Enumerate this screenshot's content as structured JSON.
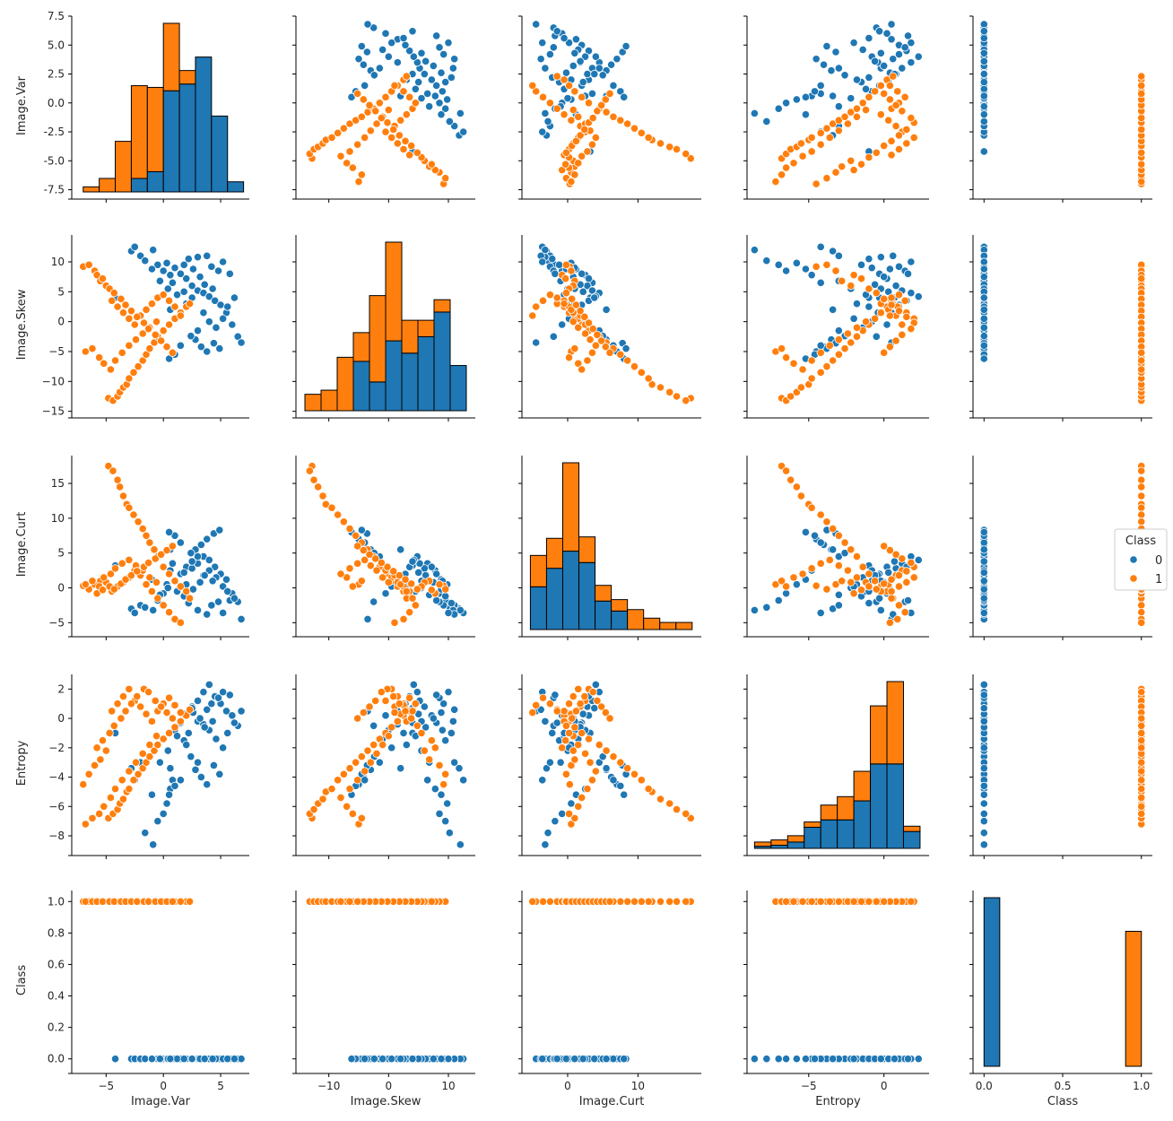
{
  "chart_data": {
    "type": "scatter",
    "kind": "pairplot",
    "variables": [
      "Image.Var",
      "Image.Skew",
      "Image.Curt",
      "Entropy",
      "Class"
    ],
    "hue": "Class",
    "legend": {
      "title": "Class",
      "placement": "right",
      "entries": [
        {
          "label": "0",
          "color": "#1f77b4"
        },
        {
          "label": "1",
          "color": "#ff7f0e"
        }
      ]
    },
    "colors": {
      "0": "#1f77b4",
      "1": "#ff7f0e"
    },
    "axes": {
      "Image.Var": {
        "lim": [
          -8,
          7.5
        ],
        "ticks": [
          -7.5,
          -5.0,
          -2.5,
          0.0,
          2.5,
          5.0,
          7.5
        ],
        "tick_labels": [
          "-7.5",
          "-5.0",
          "-2.5",
          "0.0",
          "2.5",
          "5.0",
          "7.5"
        ],
        "xticks": [
          -5,
          0,
          5
        ],
        "xtick_labels": [
          "−5",
          "0",
          "5"
        ]
      },
      "Image.Skew": {
        "lim": [
          -15.5,
          14.5
        ],
        "ticks": [
          -15,
          -10,
          -5,
          0,
          5,
          10
        ],
        "tick_labels": [
          "−15",
          "−10",
          "−5",
          "0",
          "5",
          "10"
        ],
        "xticks": [
          -10,
          0,
          10
        ],
        "xtick_labels": [
          "−10",
          "0",
          "10"
        ]
      },
      "Image.Curt": {
        "lim": [
          -6.5,
          19
        ],
        "ticks": [
          -5,
          0,
          5,
          10,
          15
        ],
        "tick_labels": [
          "−5",
          "0",
          "5",
          "10",
          "15"
        ],
        "xticks": [
          0,
          10
        ],
        "xtick_labels": [
          "0",
          "10"
        ]
      },
      "Entropy": {
        "lim": [
          -9.1,
          3.0
        ],
        "ticks": [
          -8,
          -6,
          -4,
          -2,
          0,
          2
        ],
        "tick_labels": [
          "−8",
          "−6",
          "−4",
          "−2",
          "0",
          "2"
        ],
        "xticks": [
          -5,
          0
        ],
        "xtick_labels": [
          "−5",
          "0"
        ]
      },
      "Class": {
        "lim": [
          -0.07,
          1.07
        ],
        "ticks": [
          0.0,
          0.2,
          0.4,
          0.6,
          0.8,
          1.0
        ],
        "tick_labels": [
          "0.0",
          "0.2",
          "0.4",
          "0.6",
          "0.8",
          "1.0"
        ],
        "xticks": [
          0.0,
          0.5,
          1.0
        ],
        "xtick_labels": [
          "0.0",
          "0.5",
          "1.0"
        ]
      }
    },
    "histograms": {
      "Image.Var": {
        "edges": [
          -7.0,
          -5.6,
          -4.2,
          -2.8,
          -1.4,
          0.0,
          1.4,
          2.8,
          4.2,
          5.6,
          7.0
        ],
        "counts_0": [
          0,
          0,
          0,
          8,
          12,
          60,
          64,
          80,
          45,
          6
        ],
        "counts_1": [
          3,
          8,
          30,
          55,
          50,
          40,
          8,
          0,
          0,
          0
        ]
      },
      "Image.Skew": {
        "edges": [
          -14,
          -11.3,
          -8.6,
          -5.9,
          -3.2,
          -0.5,
          2.2,
          4.9,
          7.6,
          10.3,
          13
        ],
        "counts_0": [
          0,
          0,
          0,
          12,
          7,
          17,
          14,
          18,
          24,
          11
        ],
        "counts_1": [
          4,
          5,
          13,
          7,
          21,
          24,
          8,
          4,
          3,
          0
        ]
      },
      "Image.Curt": {
        "edges": [
          -5.3,
          -3.0,
          -0.7,
          1.6,
          3.9,
          6.2,
          8.5,
          10.8,
          13.1,
          15.4,
          17.7
        ],
        "counts_0": [
          30,
          43,
          55,
          47,
          20,
          13,
          0,
          0,
          0,
          0
        ],
        "counts_1": [
          22,
          21,
          62,
          18,
          11,
          8,
          14,
          8,
          5,
          5
        ]
      },
      "Entropy": {
        "edges": [
          -8.6,
          -7.5,
          -6.4,
          -5.3,
          -4.2,
          -3.1,
          -2.0,
          -0.9,
          0.2,
          1.3,
          2.4
        ],
        "counts_0": [
          2,
          3,
          6,
          20,
          27,
          27,
          45,
          80,
          80,
          16
        ],
        "counts_1": [
          4,
          5,
          6,
          5,
          14,
          22,
          28,
          55,
          78,
          5
        ]
      },
      "Class": {
        "edges": [
          0.0,
          0.1,
          0.2,
          0.3,
          0.4,
          0.5,
          0.6,
          0.7,
          0.8,
          0.9,
          1.0
        ],
        "counts_0": [
          762,
          0,
          0,
          0,
          0,
          0,
          0,
          0,
          0,
          0
        ],
        "counts_1": [
          0,
          0,
          0,
          0,
          0,
          0,
          0,
          0,
          0,
          610
        ]
      }
    },
    "points_class_0": [
      [
        -4.2,
        4.0,
        3.2,
        -1.0
      ],
      [
        -2.8,
        11.8,
        -3.0,
        -3.4
      ],
      [
        -2.5,
        12.5,
        -3.6,
        -4.2
      ],
      [
        -2.0,
        11.0,
        -2.5,
        -3.0
      ],
      [
        -1.6,
        10.2,
        -2.8,
        -7.8
      ],
      [
        -0.9,
        12.0,
        -3.2,
        -8.6
      ],
      [
        -0.5,
        9.5,
        -1.8,
        -7.0
      ],
      [
        0.0,
        8.5,
        -0.8,
        -6.5
      ],
      [
        0.3,
        9.8,
        0.5,
        -5.8
      ],
      [
        0.6,
        7.8,
        2.5,
        -4.8
      ],
      [
        0.8,
        6.5,
        3.5,
        -4.2
      ],
      [
        -1.0,
        8.8,
        1.2,
        -5.2
      ],
      [
        1.0,
        9.0,
        1.0,
        -0.8
      ],
      [
        1.5,
        8.0,
        2.0,
        -0.3
      ],
      [
        2.0,
        7.2,
        3.0,
        0.2
      ],
      [
        2.5,
        6.0,
        2.8,
        0.8
      ],
      [
        3.0,
        5.2,
        3.5,
        1.2
      ],
      [
        3.5,
        4.8,
        4.5,
        1.8
      ],
      [
        4.0,
        4.2,
        4.0,
        2.3
      ],
      [
        4.5,
        3.5,
        3.0,
        1.5
      ],
      [
        5.0,
        2.8,
        2.0,
        1.0
      ],
      [
        5.5,
        1.5,
        1.2,
        0.5
      ],
      [
        6.0,
        -0.5,
        -0.8,
        0.2
      ],
      [
        6.5,
        -2.5,
        -2.0,
        -0.5
      ],
      [
        6.8,
        -3.5,
        -4.5,
        0.5
      ],
      [
        1.8,
        9.5,
        -1.2,
        -1.5
      ],
      [
        2.2,
        10.5,
        -2.2,
        -1.0
      ],
      [
        3.0,
        10.8,
        -3.2,
        -0.2
      ],
      [
        3.8,
        11.0,
        -3.8,
        0.6
      ],
      [
        4.2,
        9.2,
        -2.5,
        1.0
      ],
      [
        4.8,
        8.5,
        -2.0,
        1.4
      ],
      [
        5.2,
        10.0,
        -3.6,
        1.8
      ],
      [
        5.8,
        8.0,
        -1.8,
        1.6
      ],
      [
        2.8,
        -3.0,
        5.5,
        -3.5
      ],
      [
        3.3,
        -4.2,
        6.2,
        -4.0
      ],
      [
        3.8,
        -5.0,
        7.0,
        -4.5
      ],
      [
        4.4,
        -3.6,
        7.8,
        -3.2
      ],
      [
        4.9,
        -4.5,
        8.3,
        -3.8
      ],
      [
        3.0,
        -1.5,
        4.5,
        -3.0
      ],
      [
        2.4,
        -2.4,
        5.0,
        -2.6
      ],
      [
        1.5,
        -4.0,
        6.5,
        -4.2
      ],
      [
        1.0,
        -5.5,
        7.5,
        -4.6
      ],
      [
        0.5,
        -6.2,
        8.0,
        -5.2
      ],
      [
        2.0,
        3.0,
        0.5,
        -1.8
      ],
      [
        1.2,
        4.5,
        -0.5,
        -1.2
      ],
      [
        0.4,
        5.5,
        0.0,
        -2.2
      ],
      [
        -0.3,
        6.8,
        -1.0,
        -3.0
      ],
      [
        3.5,
        1.5,
        1.8,
        -0.4
      ],
      [
        4.0,
        0.0,
        2.5,
        -0.8
      ],
      [
        4.6,
        -1.0,
        1.5,
        -1.4
      ],
      [
        5.2,
        0.5,
        0.2,
        -2.0
      ],
      [
        5.6,
        2.5,
        -0.5,
        -1.0
      ],
      [
        6.2,
        4.0,
        -1.5,
        -0.3
      ],
      [
        2.6,
        8.8,
        -0.2,
        0.4
      ],
      [
        3.2,
        7.5,
        0.8,
        0.0
      ],
      [
        3.6,
        6.2,
        1.8,
        -0.6
      ],
      [
        4.3,
        5.5,
        1.0,
        -0.2
      ],
      [
        1.8,
        5.0,
        2.2,
        0.3
      ],
      [
        2.5,
        4.0,
        3.8,
        0.7
      ],
      [
        0.6,
        2.0,
        5.5,
        -3.4
      ]
    ],
    "points_class_1": [
      [
        -7.0,
        9.2,
        0.3,
        -4.5
      ],
      [
        -6.5,
        9.5,
        -0.2,
        -3.8
      ],
      [
        -6.0,
        8.5,
        0.5,
        -3.2
      ],
      [
        -5.5,
        6.8,
        1.0,
        -2.8
      ],
      [
        -5.0,
        6.0,
        0.8,
        -2.2
      ],
      [
        -4.8,
        -12.8,
        17.5,
        -6.8
      ],
      [
        -4.4,
        -13.2,
        16.8,
        -6.5
      ],
      [
        -4.0,
        -12.5,
        15.5,
        -6.2
      ],
      [
        -3.8,
        -11.8,
        14.5,
        -5.8
      ],
      [
        -3.5,
        -11.0,
        13.2,
        -5.5
      ],
      [
        -3.2,
        -10.5,
        12.0,
        -5.0
      ],
      [
        -3.0,
        -9.5,
        11.5,
        -4.8
      ],
      [
        -2.6,
        -8.5,
        10.5,
        -4.2
      ],
      [
        -2.2,
        -7.5,
        9.5,
        -3.8
      ],
      [
        -1.8,
        -6.5,
        8.5,
        -3.4
      ],
      [
        -1.5,
        -5.5,
        7.5,
        -3.0
      ],
      [
        -1.2,
        -4.5,
        6.5,
        -2.6
      ],
      [
        -0.8,
        -3.5,
        5.5,
        -2.2
      ],
      [
        -0.5,
        -2.5,
        4.5,
        -1.8
      ],
      [
        0.0,
        -1.5,
        3.0,
        -1.4
      ],
      [
        0.5,
        -0.5,
        2.0,
        -1.0
      ],
      [
        1.0,
        0.5,
        1.0,
        -0.6
      ],
      [
        1.5,
        1.5,
        0.2,
        -0.2
      ],
      [
        2.0,
        2.5,
        -0.5,
        0.2
      ],
      [
        2.3,
        3.0,
        -1.5,
        0.6
      ],
      [
        -4.5,
        3.5,
        -0.5,
        0.5
      ],
      [
        -4.0,
        2.5,
        0.2,
        1.0
      ],
      [
        -3.5,
        1.5,
        0.8,
        1.5
      ],
      [
        -3.0,
        0.5,
        1.5,
        2.0
      ],
      [
        -2.5,
        -0.5,
        2.5,
        1.2
      ],
      [
        -2.0,
        1.0,
        1.8,
        0.8
      ],
      [
        -1.5,
        2.0,
        0.5,
        0.3
      ],
      [
        -1.0,
        3.0,
        -0.5,
        -0.2
      ],
      [
        -0.5,
        4.0,
        -1.5,
        0.5
      ],
      [
        0.0,
        4.5,
        -2.5,
        1.0
      ],
      [
        0.5,
        3.5,
        -3.5,
        1.4
      ],
      [
        1.0,
        2.5,
        -4.5,
        0.9
      ],
      [
        1.5,
        1.0,
        -5.0,
        0.4
      ],
      [
        -6.8,
        -5.0,
        0.5,
        -7.2
      ],
      [
        -6.2,
        -4.5,
        1.0,
        -6.8
      ],
      [
        -5.6,
        -6.0,
        0.2,
        -6.5
      ],
      [
        -5.2,
        -7.0,
        1.5,
        -6.0
      ],
      [
        -4.6,
        -8.0,
        2.0,
        -5.4
      ],
      [
        -4.2,
        -6.5,
        2.8,
        -4.8
      ],
      [
        -3.6,
        -5.2,
        3.5,
        -4.2
      ],
      [
        -3.0,
        -4.0,
        4.0,
        -3.6
      ],
      [
        -2.4,
        -3.0,
        3.2,
        -3.0
      ],
      [
        -1.8,
        -2.0,
        2.5,
        -2.4
      ],
      [
        -1.2,
        -1.0,
        1.5,
        -1.8
      ],
      [
        -0.6,
        0.0,
        0.8,
        -1.2
      ],
      [
        -5.8,
        7.8,
        -0.8,
        -2.0
      ],
      [
        -5.3,
        7.2,
        -0.3,
        -1.5
      ],
      [
        -4.7,
        5.5,
        0.2,
        -1.0
      ],
      [
        -4.3,
        4.8,
        -0.2,
        -0.5
      ],
      [
        -3.7,
        3.8,
        0.6,
        0.0
      ],
      [
        -3.3,
        2.8,
        1.2,
        0.5
      ],
      [
        -2.8,
        1.8,
        1.8,
        1.0
      ],
      [
        -2.3,
        0.8,
        2.4,
        1.5
      ],
      [
        -1.7,
        -0.2,
        3.0,
        2.0
      ],
      [
        -1.3,
        -1.2,
        3.6,
        1.8
      ],
      [
        -0.7,
        -2.2,
        4.2,
        1.2
      ],
      [
        -0.2,
        -3.2,
        4.8,
        0.8
      ],
      [
        0.3,
        -4.2,
        5.4,
        0.4
      ],
      [
        0.8,
        -5.2,
        6.0,
        0.0
      ]
    ]
  }
}
